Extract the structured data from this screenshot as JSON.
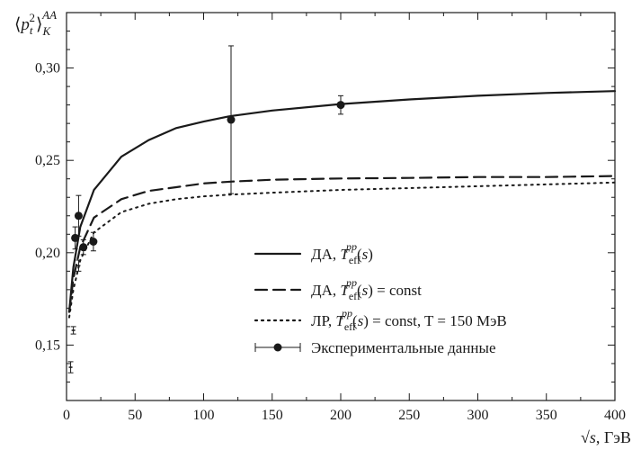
{
  "chart_data": {
    "type": "line",
    "ylabel": "⟨p_t²⟩_K^AA",
    "xlabel": "√s, ГэВ",
    "xlim": [
      0,
      400
    ],
    "ylim": [
      0.12,
      0.33
    ],
    "x_ticks": [
      "0",
      "50",
      "100",
      "150",
      "200",
      "250",
      "300",
      "350",
      "400"
    ],
    "y_ticks": [
      "0,15",
      "0,20",
      "0,25",
      "0,30"
    ],
    "grid": false,
    "legend_position": "center-right",
    "series": [
      {
        "name": "ДА, T_eff^pp(s)",
        "style": "solid",
        "x": [
          2,
          5,
          10,
          20,
          40,
          60,
          80,
          100,
          120,
          150,
          200,
          250,
          300,
          350,
          400
        ],
        "y": [
          0.168,
          0.192,
          0.214,
          0.234,
          0.252,
          0.261,
          0.2675,
          0.271,
          0.274,
          0.277,
          0.2805,
          0.283,
          0.285,
          0.2865,
          0.2875
        ]
      },
      {
        "name": "ДА, T_eff^pp(s) = const",
        "style": "dashed",
        "x": [
          2,
          5,
          10,
          20,
          40,
          60,
          80,
          100,
          120,
          150,
          200,
          250,
          300,
          350,
          400
        ],
        "y": [
          0.168,
          0.186,
          0.203,
          0.219,
          0.229,
          0.2335,
          0.2355,
          0.2375,
          0.2385,
          0.2395,
          0.2402,
          0.2405,
          0.241,
          0.241,
          0.2415
        ]
      },
      {
        "name": "ЛР, T_eff^pp(s) = const, T = 150 МэВ",
        "style": "dotted",
        "x": [
          2,
          5,
          10,
          20,
          40,
          60,
          80,
          100,
          120,
          150,
          200,
          250,
          300,
          350,
          400
        ],
        "y": [
          0.165,
          0.18,
          0.196,
          0.211,
          0.222,
          0.2265,
          0.229,
          0.2305,
          0.2315,
          0.2325,
          0.234,
          0.235,
          0.236,
          0.237,
          0.238
        ]
      }
    ],
    "experimental": {
      "name": "Экспериментальные данные",
      "points": [
        {
          "x": 3,
          "y": 0.138,
          "err": 0.003,
          "marker": false
        },
        {
          "x": 5,
          "y": 0.158,
          "err": 0.002,
          "marker": false
        },
        {
          "x": 6.3,
          "y": 0.208,
          "err": 0.006,
          "marker": true
        },
        {
          "x": 8.8,
          "y": 0.22,
          "err": 0.011,
          "marker": true
        },
        {
          "x": 8.8,
          "y": 0.193,
          "err": 0.003,
          "marker": false
        },
        {
          "x": 12.3,
          "y": 0.203,
          "err": 0.004,
          "marker": true
        },
        {
          "x": 19.6,
          "y": 0.206,
          "err": 0.005,
          "marker": true
        },
        {
          "x": 120,
          "y": 0.272,
          "err": 0.04,
          "marker": true
        },
        {
          "x": 200,
          "y": 0.28,
          "err": 0.005,
          "marker": true
        }
      ]
    }
  }
}
